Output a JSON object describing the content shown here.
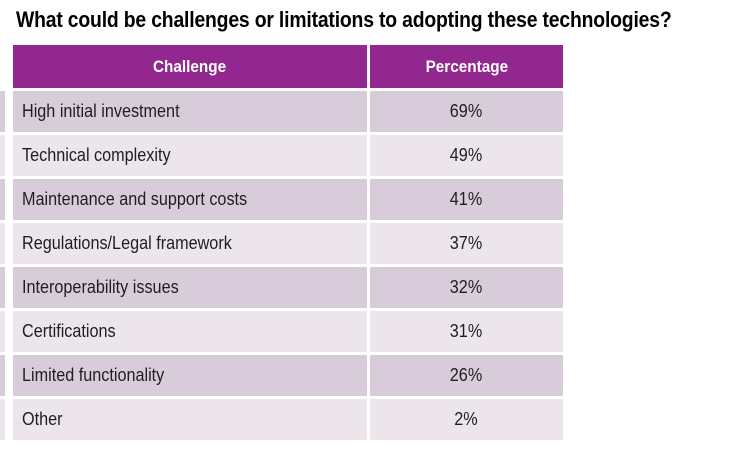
{
  "title": "What could be challenges or limitations to adopting these technologies?",
  "table": {
    "columns": [
      "Challenge",
      "Percentage"
    ],
    "rows": [
      {
        "challenge": "High initial investment",
        "percentage": "69%"
      },
      {
        "challenge": "Technical complexity",
        "percentage": "49%"
      },
      {
        "challenge": "Maintenance and support costs",
        "percentage": "41%"
      },
      {
        "challenge": "Regulations/Legal framework",
        "percentage": "37%"
      },
      {
        "challenge": "Interoperability issues",
        "percentage": "32%"
      },
      {
        "challenge": "Certifications",
        "percentage": "31%"
      },
      {
        "challenge": "Limited functionality",
        "percentage": "26%"
      },
      {
        "challenge": "Other",
        "percentage": "2%"
      }
    ]
  },
  "colors": {
    "header_bg": "#92278F",
    "header_text": "#FFFFFF",
    "row_odd": "#D8CBDA",
    "row_even": "#ECE5EC",
    "cell_text": "#1F1F1F"
  },
  "chart_data": {
    "type": "table",
    "title": "What could be challenges or limitations to adopting these technologies?",
    "columns": [
      "Challenge",
      "Percentage"
    ],
    "categories": [
      "High initial investment",
      "Technical complexity",
      "Maintenance and support costs",
      "Regulations/Legal framework",
      "Interoperability issues",
      "Certifications",
      "Limited functionality",
      "Other"
    ],
    "values": [
      69,
      49,
      41,
      37,
      32,
      31,
      26,
      2
    ],
    "value_unit": "%",
    "layout": "two-column table, magenta header row, alternating lavender row bands"
  }
}
